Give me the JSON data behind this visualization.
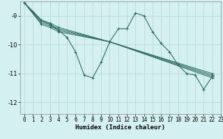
{
  "xlabel": "Humidex (Indice chaleur)",
  "bg_color": "#d4f0f0",
  "grid_color": "#b8d8d8",
  "line_color": "#2d6b62",
  "xlim": [
    -0.5,
    23
  ],
  "ylim": [
    -12.4,
    -8.5
  ],
  "yticks": [
    -12,
    -11,
    -10,
    -9
  ],
  "xticks": [
    0,
    1,
    2,
    3,
    4,
    5,
    6,
    7,
    8,
    9,
    10,
    11,
    12,
    13,
    14,
    15,
    16,
    17,
    18,
    19,
    20,
    21,
    22,
    23
  ],
  "series_main": {
    "x": [
      0,
      1,
      2,
      3,
      4,
      5,
      6,
      7,
      8,
      9,
      10,
      11,
      12,
      13,
      14,
      15,
      16,
      17,
      18,
      19,
      20,
      21,
      22
    ],
    "y": [
      -8.55,
      -8.85,
      -9.15,
      -9.3,
      -9.5,
      -9.75,
      -10.25,
      -11.05,
      -11.15,
      -10.6,
      -9.9,
      -9.45,
      -9.45,
      -8.9,
      -9.0,
      -9.55,
      -9.95,
      -10.25,
      -10.7,
      -11.0,
      -11.05,
      -11.55,
      -11.1
    ]
  },
  "series_straight": [
    {
      "x": [
        0,
        2,
        3,
        4,
        10,
        22
      ],
      "y": [
        -8.55,
        -9.15,
        -9.25,
        -9.4,
        -9.9,
        -11.0
      ]
    },
    {
      "x": [
        0,
        2,
        3,
        4,
        10,
        22
      ],
      "y": [
        -8.55,
        -9.2,
        -9.3,
        -9.45,
        -9.9,
        -11.05
      ]
    },
    {
      "x": [
        0,
        2,
        3,
        4,
        10,
        22
      ],
      "y": [
        -8.55,
        -9.25,
        -9.35,
        -9.5,
        -9.9,
        -11.1
      ]
    },
    {
      "x": [
        0,
        2,
        3,
        4,
        10,
        22
      ],
      "y": [
        -8.55,
        -9.3,
        -9.4,
        -9.55,
        -9.9,
        -11.15
      ]
    }
  ]
}
